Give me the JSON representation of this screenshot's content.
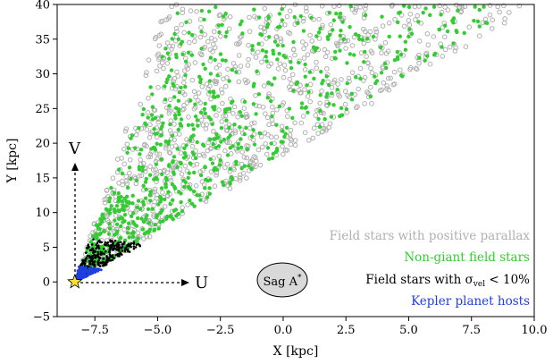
{
  "chart_data": {
    "type": "scatter",
    "xlabel": "X [kpc]",
    "ylabel": "Y [kpc]",
    "xlim": [
      -9.0,
      10.0
    ],
    "ylim": [
      -5,
      40
    ],
    "xticks": [
      -7.5,
      -5.0,
      -2.5,
      0.0,
      2.5,
      5.0,
      7.5,
      10.0
    ],
    "xtick_labels": [
      "−7.5",
      "−5.0",
      "−2.5",
      "0.0",
      "2.5",
      "5.0",
      "7.5",
      "10.0"
    ],
    "yticks": [
      -5,
      0,
      5,
      10,
      15,
      20,
      25,
      30,
      35,
      40
    ],
    "ytick_labels": [
      "−5",
      "0",
      "5",
      "10",
      "15",
      "20",
      "25",
      "30",
      "35",
      "40"
    ],
    "grid": false,
    "legend_position": "bottom-right",
    "sun_position": [
      -8.3,
      0
    ],
    "series": [
      {
        "name": "Field stars with positive parallax",
        "color": "#b0b0b0",
        "marker": "open-circle"
      },
      {
        "name": "Non-giant field stars",
        "color": "#33cc33",
        "marker": "filled-circle"
      },
      {
        "name": "Field stars with σ",
        "sub": "vel",
        "suffix": " < 10%",
        "color": "#000000",
        "marker": "filled-dot"
      },
      {
        "name": "Kepler planet hosts",
        "color": "#1f3fe0",
        "marker": "filled-dot"
      }
    ],
    "annotations": {
      "v_label": "V",
      "u_label": "U",
      "sag_label": "Sag A",
      "sag_sup": "*",
      "sag_position": [
        0,
        0
      ]
    }
  }
}
